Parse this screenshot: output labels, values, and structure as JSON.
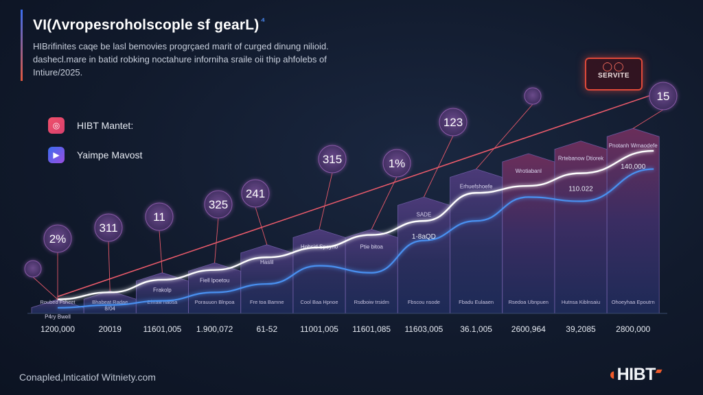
{
  "header": {
    "title": "VI(Λvropesroholscople sf gearL)",
    "title_mark": "⁴",
    "subtitle": "HIBrifinites caqe be lasl bemovies progrçaed marit of curged dinung nilioid. dashecl.mare in batid robking noctahure inforniha sraile oii thip ahfolebs of Intiure/2025."
  },
  "legend": [
    {
      "label": "HIBT Mantet:",
      "icon": "circle-logo-icon",
      "color": "#e84a66"
    },
    {
      "label": "Yaimpe Mavost",
      "icon": "play-icon",
      "color": "#5a5ef0"
    }
  ],
  "badge": {
    "text": "SERVITE",
    "icon": "glasses-icon",
    "color": "#e04a3a"
  },
  "footer": {
    "credit": "Conapled,Inticatiof Witniety.com"
  },
  "logo": {
    "text": "HIBT",
    "mark": "◖"
  },
  "chart_data": {
    "type": "bar",
    "categories": [
      "1200,000",
      "20019",
      "11601,005",
      "1.900,072",
      "61-52",
      "11001,005",
      "11601,085",
      "11603,005",
      "36.1,005",
      "2600,964",
      "39,2085",
      "2800,000"
    ],
    "series": [
      {
        "values": [
          1.0,
          1.6,
          2.9,
          3.6,
          4.9,
          6.0,
          6.0,
          8.3,
          10.3,
          11.4,
          12.3,
          13.2
        ]
      },
      {
        "values": [
          1.0,
          1.5,
          2.4,
          3.1,
          4.0,
          4.7,
          5.6,
          6.6,
          8.6,
          9.1,
          10.0,
          11.6
        ]
      },
      {
        "values": [
          0.4,
          0.6,
          0.9,
          1.5,
          2.1,
          3.4,
          2.9,
          5.2,
          6.6,
          8.3,
          8.0,
          10.3
        ]
      }
    ],
    "trend_line": {
      "from": [
        0,
        1.2
      ],
      "to": [
        11,
        15.8
      ]
    },
    "callouts": [
      {
        "index": 0,
        "text": ""
      },
      {
        "index": 0,
        "text": "2%"
      },
      {
        "index": 1,
        "text": "311"
      },
      {
        "index": 2,
        "text": "11"
      },
      {
        "index": 3,
        "text": "325"
      },
      {
        "index": 4,
        "text": "241"
      },
      {
        "index": 5,
        "text": "315"
      },
      {
        "index": 6,
        "text": "1%"
      },
      {
        "index": 7,
        "text": "123"
      },
      {
        "index": 8,
        "text": ""
      },
      {
        "index": 11,
        "text": "15"
      }
    ],
    "bar_labels": [
      {
        "top": "P4ry Bwell",
        "bottom": "Roubed Fsheet"
      },
      {
        "top": "8/04",
        "bottom": "Bhabeat Radae"
      },
      {
        "top": "Frakolp",
        "bottom": "Ehraw haosa"
      },
      {
        "top": "Fiell lpoetou",
        "bottom": "Porauuon Blnpoa"
      },
      {
        "top": "Haslil",
        "bottom": "Fre toa Bamne"
      },
      {
        "top": "Hobsid Spoyno",
        "bottom": "Cool Baa Hpnoe"
      },
      {
        "top": "Ptie bitoa",
        "bottom": "Rsdboiw trsidm"
      },
      {
        "top": "SADE",
        "bottom": "Fbscou nsode"
      },
      {
        "top": "Erhuefshoefe",
        "bottom": "Fbadu Eulaaen"
      },
      {
        "top": "Wrotiabanl",
        "bottom": "Rsedoa Ubnpuen"
      },
      {
        "top": "Rrtebanow Dtiorek",
        "bottom": "Hutnsa Kiblnsaiu"
      },
      {
        "top": "Pnotanh Wrnaodefe",
        "bottom": "Ohoeyhaa Epoutrn"
      }
    ],
    "value_labels": [
      {
        "index": 7,
        "text": "1-8aQD"
      },
      {
        "index": 10,
        "text": "110.022"
      },
      {
        "index": 11,
        "text": "140,000"
      }
    ],
    "ylim": [
      0,
      16
    ],
    "grid": false
  }
}
